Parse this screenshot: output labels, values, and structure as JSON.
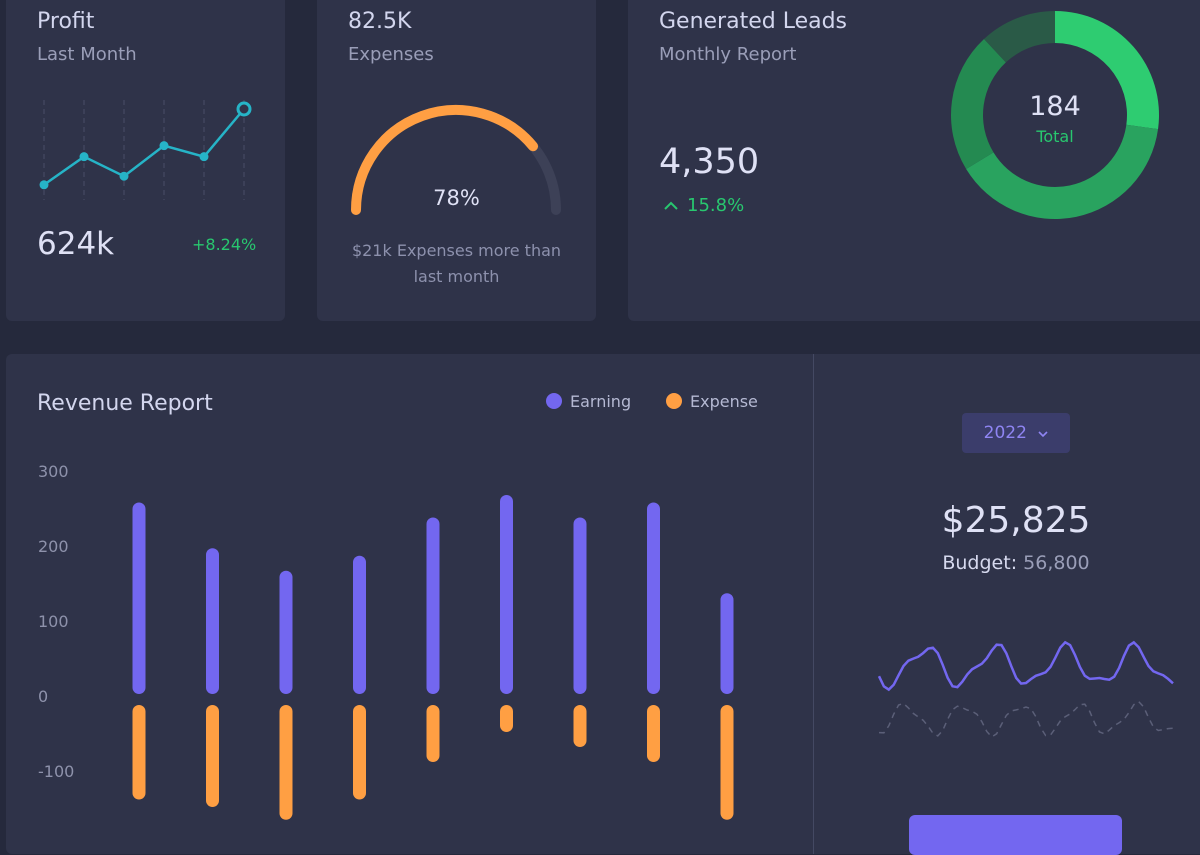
{
  "profit": {
    "title": "Profit",
    "subtitle": "Last Month",
    "value": "624k",
    "change": "+8.24%",
    "trend": [
      1,
      3.3,
      1.7,
      4.2,
      3.3,
      7.2
    ],
    "color": "#26b4c7"
  },
  "expenses": {
    "value": "82.5K",
    "label": "Expenses",
    "percent_text": "78%",
    "percent": 78,
    "note_line1": "$21k Expenses more than",
    "note_line2": "last month",
    "color": "#ff9f43"
  },
  "leads": {
    "title": "Generated Leads",
    "subtitle": "Monthly Report",
    "value": "4,350",
    "change": "15.8%",
    "donut_total": "184",
    "donut_label": "Total",
    "donut_slices": [
      {
        "value": 50,
        "color": "#2ecc71"
      },
      {
        "value": 72,
        "color": "#29a35f"
      },
      {
        "value": 40,
        "color": "#248a51"
      },
      {
        "value": 22,
        "color": "#2a5a47"
      }
    ]
  },
  "revenue": {
    "title": "Revenue Report",
    "legend": [
      {
        "name": "Earning",
        "color": "#7367f0"
      },
      {
        "name": "Expense",
        "color": "#ff9f43"
      }
    ]
  },
  "chart_data": {
    "type": "bar",
    "yticks": [
      "300",
      "200",
      "100",
      "0",
      "-100"
    ],
    "ylim": [
      -180,
      300
    ],
    "series": [
      {
        "name": "Earning",
        "color": "#7367f0",
        "values": [
          258,
          197,
          167,
          187,
          238,
          268,
          238,
          258,
          137
        ]
      },
      {
        "name": "Expense",
        "color": "#ff9f43",
        "values": [
          -138,
          -148,
          -165,
          -138,
          -88,
          -48,
          -68,
          -88,
          -165
        ]
      }
    ]
  },
  "budget": {
    "year": "2022",
    "amount": "$25,825",
    "label": "Budget:",
    "value": "56,800",
    "button_color": "#7367f0"
  }
}
